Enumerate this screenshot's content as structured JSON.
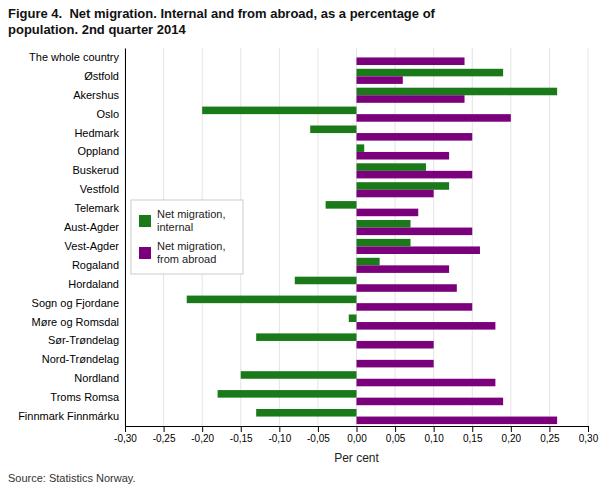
{
  "chart_data": {
    "type": "bar",
    "orientation": "horizontal",
    "title": "Figure 4.  Net migration. Internal and from abroad, as a percentage of\npopulation. 2nd quarter 2014",
    "categories": [
      "The whole country",
      "Østfold",
      "Akershus",
      "Oslo",
      "Hedmark",
      "Oppland",
      "Buskerud",
      "Vestfold",
      "Telemark",
      "Aust-Agder",
      "Vest-Agder",
      "Rogaland",
      "Hordaland",
      "Sogn og Fjordane",
      "Møre og Romsdal",
      "Sør-Trøndelag",
      "Nord-Trøndelag",
      "Nordland",
      "Troms Romsa",
      "Finnmark Finnmárku"
    ],
    "series": [
      {
        "name": "Net migration,\ninternal",
        "color": "#1a7a1a",
        "values": [
          0.0,
          0.19,
          0.26,
          -0.2,
          -0.06,
          0.01,
          0.09,
          0.12,
          -0.04,
          0.07,
          0.07,
          0.03,
          -0.08,
          -0.22,
          -0.01,
          -0.13,
          0.0,
          -0.15,
          -0.18,
          -0.13
        ]
      },
      {
        "name": "Net migration,\nfrom abroad",
        "color": "#7b007b",
        "values": [
          0.14,
          0.06,
          0.14,
          0.2,
          0.15,
          0.12,
          0.15,
          0.1,
          0.08,
          0.15,
          0.16,
          0.12,
          0.13,
          0.15,
          0.18,
          0.1,
          0.1,
          0.18,
          0.19,
          0.26
        ]
      }
    ],
    "xlabel": "Per cent",
    "xlim": [
      -0.3,
      0.3
    ],
    "xticks": [
      {
        "value": -0.3,
        "label": "-0,30"
      },
      {
        "value": -0.25,
        "label": "-0,25"
      },
      {
        "value": -0.2,
        "label": "-0,20"
      },
      {
        "value": -0.15,
        "label": "-0,15"
      },
      {
        "value": -0.1,
        "label": "-0,10"
      },
      {
        "value": -0.05,
        "label": "-0,05"
      },
      {
        "value": 0.0,
        "label": "0,00"
      },
      {
        "value": 0.05,
        "label": "0,05"
      },
      {
        "value": 0.1,
        "label": "0,10"
      },
      {
        "value": 0.15,
        "label": "0,15"
      },
      {
        "value": 0.2,
        "label": "0,20"
      },
      {
        "value": 0.25,
        "label": "0,25"
      },
      {
        "value": 0.3,
        "label": "0,30"
      }
    ],
    "grid": true,
    "legend": "left",
    "source": "Source: Statistics Norway."
  }
}
